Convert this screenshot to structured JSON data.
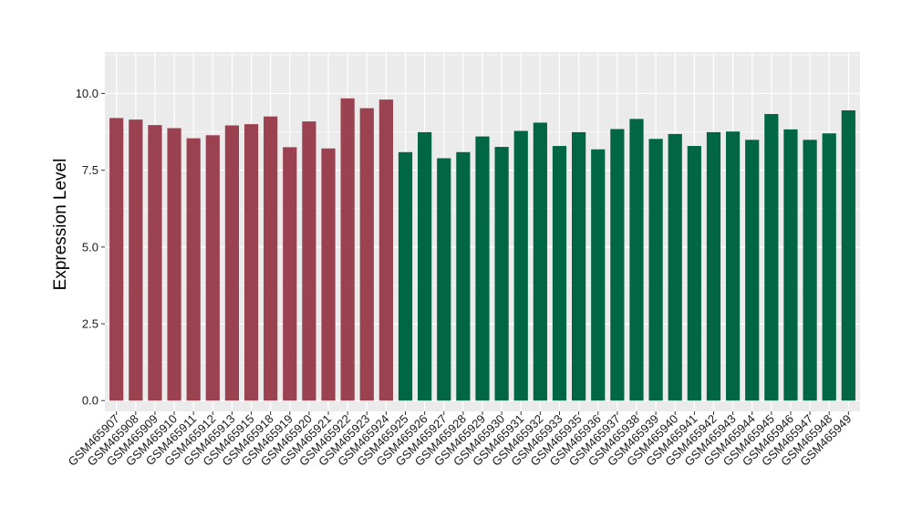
{
  "chart_data": {
    "type": "bar",
    "title": "",
    "xlabel": "",
    "ylabel": "Expression Level",
    "ylim": [
      -0.35,
      11.35
    ],
    "yticks": [
      0.0,
      2.5,
      5.0,
      7.5,
      10.0
    ],
    "ytick_labels": [
      "0.0",
      "2.5",
      "5.0",
      "7.5",
      "10.0"
    ],
    "grid": true,
    "legend": "none",
    "panel_background": "#ebebeb",
    "grid_color": "#ffffff",
    "group_colors": [
      "#9a4250",
      "#006644"
    ],
    "categories": [
      "GSM465907",
      "GSM465908",
      "GSM465909",
      "GSM465910",
      "GSM465911",
      "GSM465912",
      "GSM465913",
      "GSM465915",
      "GSM465918",
      "GSM465919",
      "GSM465920",
      "GSM465921",
      "GSM465922",
      "GSM465923",
      "GSM465924",
      "GSM465925",
      "GSM465926",
      "GSM465927",
      "GSM465928",
      "GSM465929",
      "GSM465930",
      "GSM465931",
      "GSM465932",
      "GSM465933",
      "GSM465935",
      "GSM465936",
      "GSM465937",
      "GSM465938",
      "GSM465939",
      "GSM465940",
      "GSM465941",
      "GSM465942",
      "GSM465943",
      "GSM465944",
      "GSM465945",
      "GSM465946",
      "GSM465947",
      "GSM465948",
      "GSM465949"
    ],
    "values": [
      9.2,
      9.15,
      8.97,
      8.87,
      8.54,
      8.64,
      8.96,
      9.0,
      9.25,
      8.25,
      9.09,
      8.21,
      9.84,
      9.52,
      9.8,
      8.09,
      8.74,
      7.89,
      8.09,
      8.6,
      8.26,
      8.78,
      9.05,
      8.29,
      8.74,
      8.18,
      8.84,
      9.17,
      8.52,
      8.68,
      8.29,
      8.74,
      8.76,
      8.49,
      9.33,
      8.83,
      8.49,
      8.7,
      9.45
    ],
    "groups": [
      0,
      0,
      0,
      0,
      0,
      0,
      0,
      0,
      0,
      0,
      0,
      0,
      0,
      0,
      0,
      1,
      1,
      1,
      1,
      1,
      1,
      1,
      1,
      1,
      1,
      1,
      1,
      1,
      1,
      1,
      1,
      1,
      1,
      1,
      1,
      1,
      1,
      1,
      1
    ]
  }
}
